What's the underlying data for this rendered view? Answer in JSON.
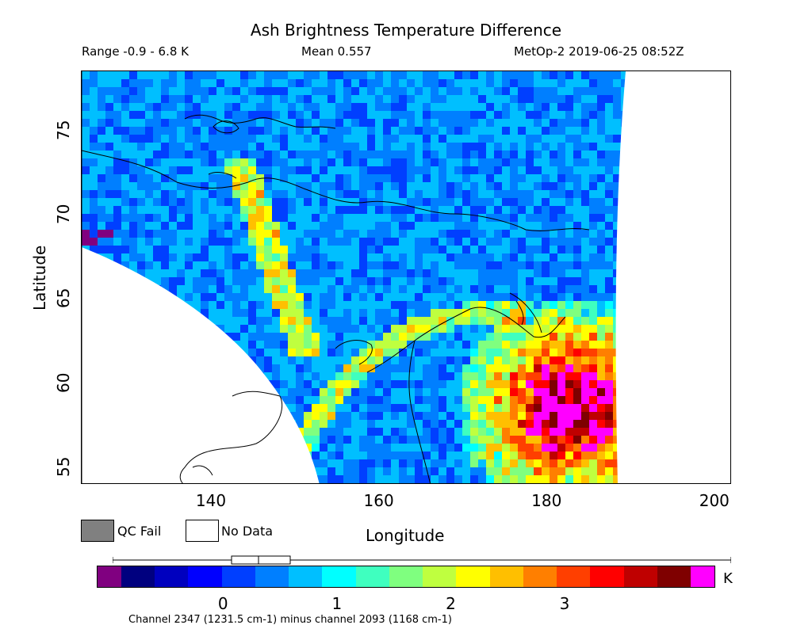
{
  "header": {
    "title": "Ash Brightness Temperature Difference",
    "range": "Range -0.9 - 6.8 K",
    "mean": "Mean 0.557",
    "satellite_time": "MetOp-2 2019-06-25 08:52Z"
  },
  "axes": {
    "xlabel": "Longitude",
    "ylabel": "Latitude",
    "x_ticks": [
      "140",
      "160",
      "180",
      "200"
    ],
    "y_ticks": [
      "75",
      "70",
      "65",
      "60",
      "55"
    ],
    "x_range": [
      124.5,
      202
    ],
    "y_range": [
      53.9,
      78.5
    ]
  },
  "legend": {
    "qc_fail": "QC Fail",
    "no_data": "No Data",
    "qc_fail_color": "#808080",
    "no_data_color": "#ffffff"
  },
  "colorbar": {
    "unit": "K",
    "ticks": [
      "0",
      "1",
      "2",
      "3"
    ],
    "tick_values": [
      0,
      1,
      2,
      3
    ],
    "min": -0.9,
    "max": 6.8,
    "under_color": "#800080",
    "over_color": "#ff00ff",
    "palette": [
      "#00007f",
      "#0000bf",
      "#0000ff",
      "#003fff",
      "#007fff",
      "#00bfff",
      "#00ffff",
      "#3fffbf",
      "#7fff7f",
      "#bfff3f",
      "#ffff00",
      "#ffbf00",
      "#ff7f00",
      "#ff3f00",
      "#ff0000",
      "#bf0000",
      "#7f0000"
    ]
  },
  "footer": {
    "channel_note": "Channel 2347 (1231.5 cm-1) minus channel 2093 (1168 cm-1)"
  }
}
